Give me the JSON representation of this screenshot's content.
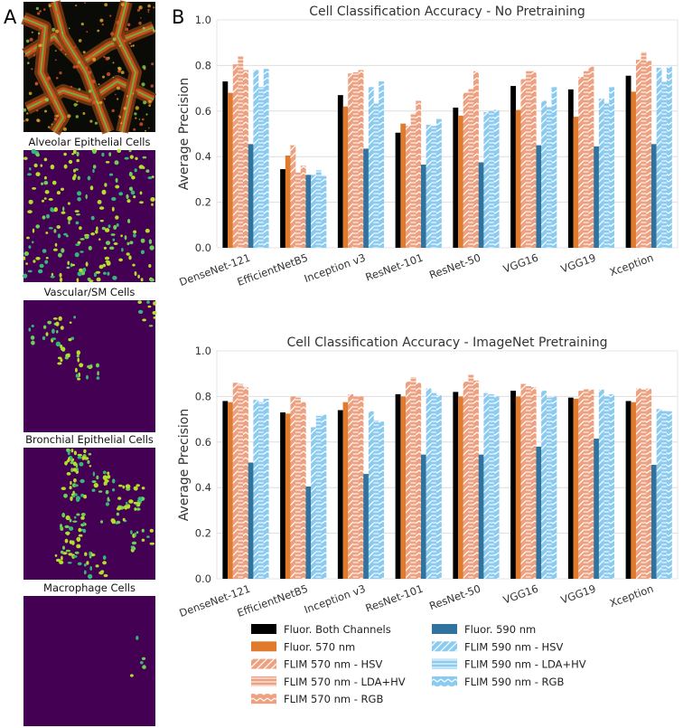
{
  "panel_labels": {
    "a": "A",
    "b": "B"
  },
  "image_titles": [
    "Alveolar Epithelial Cells",
    "Vascular/SM Cells",
    "Bronchial Epithelial Cells",
    "Macrophage Cells"
  ],
  "chart_data": [
    {
      "type": "bar",
      "title": "Cell Classification Accuracy - No Pretraining",
      "ylabel": "Average Precision",
      "xlabel": "",
      "ylim": [
        0,
        1.0
      ],
      "yticks": [
        "0.0",
        "0.2",
        "0.4",
        "0.6",
        "0.8",
        "1.0"
      ],
      "grid": true,
      "categories": [
        "DenseNet-121",
        "EfficientNetB5",
        "Inception v3",
        "ResNet-101",
        "ResNet-50",
        "VGG16",
        "VGG19",
        "Xception"
      ],
      "series": [
        {
          "name": "Fluor. Both Channels",
          "values": [
            0.73,
            0.345,
            0.67,
            0.505,
            0.615,
            0.71,
            0.695,
            0.755
          ]
        },
        {
          "name": "Fluor. 570 nm",
          "values": [
            0.68,
            0.405,
            0.62,
            0.545,
            0.58,
            0.605,
            0.575,
            0.685
          ]
        },
        {
          "name": "FLIM 570 nm - HSV",
          "values": [
            0.805,
            0.45,
            0.765,
            0.535,
            0.68,
            0.74,
            0.75,
            0.825
          ]
        },
        {
          "name": "FLIM 570 nm - LDA+HV",
          "values": [
            0.84,
            0.33,
            0.77,
            0.59,
            0.7,
            0.775,
            0.775,
            0.86
          ]
        },
        {
          "name": "FLIM 570 nm - RGB",
          "values": [
            0.78,
            0.36,
            0.78,
            0.645,
            0.775,
            0.775,
            0.795,
            0.82
          ]
        },
        {
          "name": "Fluor. 590 nm",
          "values": [
            0.455,
            0.32,
            0.435,
            0.365,
            0.375,
            0.45,
            0.445,
            0.455
          ]
        },
        {
          "name": "FLIM 590 nm - HSV",
          "values": [
            0.78,
            0.32,
            0.705,
            0.54,
            0.595,
            0.645,
            0.655,
            0.79
          ]
        },
        {
          "name": "FLIM 590 nm - LDA+HV",
          "values": [
            0.705,
            0.34,
            0.635,
            0.535,
            0.6,
            0.62,
            0.635,
            0.73
          ]
        },
        {
          "name": "FLIM 590 nm - RGB",
          "values": [
            0.785,
            0.315,
            0.73,
            0.565,
            0.605,
            0.705,
            0.705,
            0.795
          ]
        }
      ]
    },
    {
      "type": "bar",
      "title": "Cell Classification Accuracy - ImageNet Pretraining",
      "ylabel": "Average Precision",
      "xlabel": "",
      "ylim": [
        0,
        1.0
      ],
      "yticks": [
        "0.0",
        "0.2",
        "0.4",
        "0.6",
        "0.8",
        "1.0"
      ],
      "grid": true,
      "categories": [
        "DenseNet-121",
        "EfficientNetB5",
        "Inception v3",
        "ResNet-101",
        "ResNet-50",
        "VGG16",
        "VGG19",
        "Xception"
      ],
      "series": [
        {
          "name": "Fluor. Both Channels",
          "values": [
            0.78,
            0.73,
            0.74,
            0.81,
            0.82,
            0.825,
            0.795,
            0.78
          ]
        },
        {
          "name": "Fluor. 570 nm",
          "values": [
            0.775,
            0.725,
            0.775,
            0.8,
            0.8,
            0.8,
            0.79,
            0.775
          ]
        },
        {
          "name": "FLIM 570 nm - HSV",
          "values": [
            0.86,
            0.8,
            0.81,
            0.865,
            0.865,
            0.855,
            0.825,
            0.835
          ]
        },
        {
          "name": "FLIM 570 nm - LDA+HV",
          "values": [
            0.855,
            0.795,
            0.8,
            0.885,
            0.895,
            0.845,
            0.835,
            0.83
          ]
        },
        {
          "name": "FLIM 570 nm - RGB",
          "values": [
            0.84,
            0.775,
            0.8,
            0.86,
            0.87,
            0.84,
            0.83,
            0.835
          ]
        },
        {
          "name": "Fluor. 590 nm",
          "values": [
            0.51,
            0.405,
            0.46,
            0.545,
            0.545,
            0.58,
            0.615,
            0.5
          ]
        },
        {
          "name": "FLIM 590 nm - HSV",
          "values": [
            0.785,
            0.665,
            0.735,
            0.835,
            0.815,
            0.825,
            0.83,
            0.745
          ]
        },
        {
          "name": "FLIM 590 nm - LDA+HV",
          "values": [
            0.775,
            0.715,
            0.695,
            0.815,
            0.81,
            0.795,
            0.8,
            0.74
          ]
        },
        {
          "name": "FLIM 590 nm - RGB",
          "values": [
            0.79,
            0.72,
            0.69,
            0.805,
            0.8,
            0.8,
            0.81,
            0.735
          ]
        }
      ]
    }
  ],
  "legend": [
    {
      "label": "Fluor. Both Channels",
      "style": "solid",
      "color": "#000000"
    },
    {
      "label": "Fluor. 570 nm",
      "style": "solid",
      "color": "#e07b2e"
    },
    {
      "label": "FLIM 570 nm - HSV",
      "style": "hatch-diag",
      "color": "#eea180"
    },
    {
      "label": "FLIM 570 nm - LDA+HV",
      "style": "hatch-horiz",
      "color": "#eea180"
    },
    {
      "label": "FLIM 570 nm - RGB",
      "style": "hatch-chev",
      "color": "#eea180"
    },
    {
      "label": "Fluor. 590 nm",
      "style": "solid",
      "color": "#31739f"
    },
    {
      "label": "FLIM 590 nm - HSV",
      "style": "hatch-diag",
      "color": "#8ccbf0"
    },
    {
      "label": "FLIM 590 nm - LDA+HV",
      "style": "hatch-horiz",
      "color": "#8ccbf0"
    },
    {
      "label": "FLIM 590 nm - RGB",
      "style": "hatch-chev",
      "color": "#8ccbf0"
    }
  ]
}
